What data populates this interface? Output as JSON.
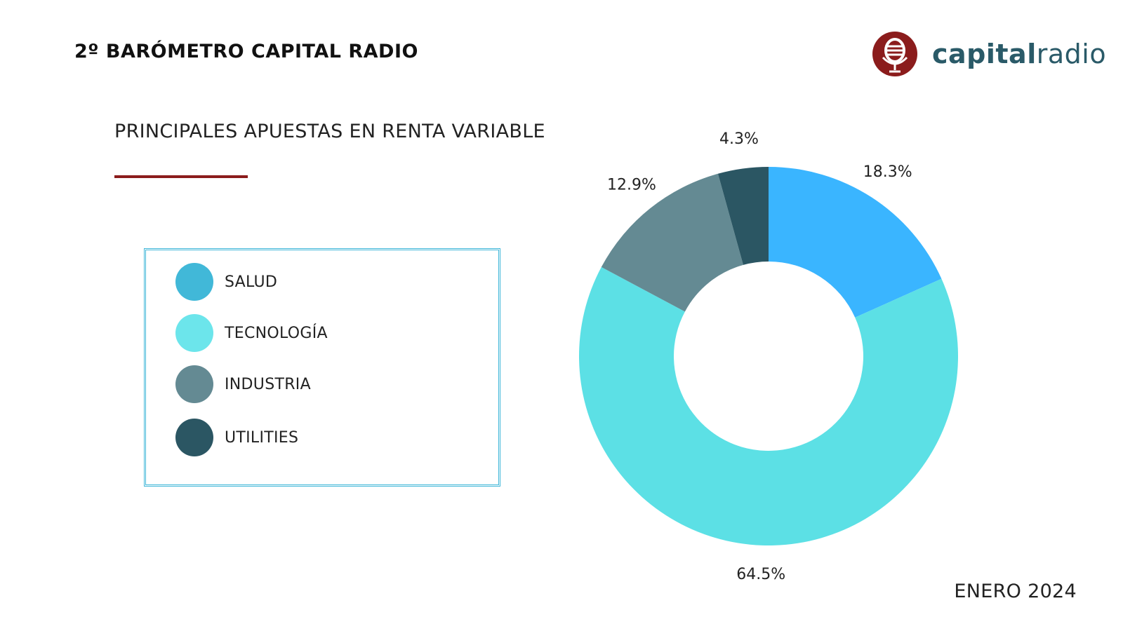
{
  "header": {
    "title": "2º BARÓMETRO CAPITAL RADIO",
    "logo_text_bold": "capital",
    "logo_text_light": "radio",
    "logo_icon": "microphone-globe-icon",
    "logo_color": "#8b1c1c"
  },
  "chart_title": "PRINCIPALES APUESTAS EN RENTA VARIABLE",
  "legend": [
    {
      "label": "SALUD",
      "color": "#41b8d8"
    },
    {
      "label": "TECNOLOGÍA",
      "color": "#6ce5eb"
    },
    {
      "label": "INDUSTRIA",
      "color": "#648a93"
    },
    {
      "label": "UTILITIES",
      "color": "#2b5663"
    }
  ],
  "chart_data": {
    "type": "pie",
    "variant": "donut",
    "categories": [
      "SALUD",
      "TECNOLOGÍA",
      "INDUSTRIA",
      "UTILITIES"
    ],
    "values": [
      18.3,
      64.5,
      12.9,
      4.3
    ],
    "labels": [
      "18.3%",
      "64.5%",
      "12.9%",
      "4.3%"
    ],
    "colors": [
      "#3ab5ff",
      "#5ce0e5",
      "#648a93",
      "#2b5663"
    ],
    "title": "PRINCIPALES APUESTAS EN RENTA VARIABLE",
    "legend_placement": "left"
  },
  "footer": {
    "date": "ENERO 2024"
  }
}
